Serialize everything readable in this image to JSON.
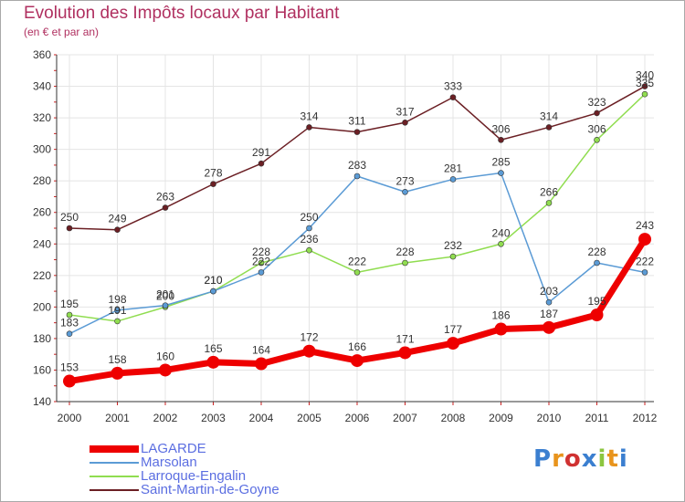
{
  "title": "Evolution des Impôts locaux par Habitant",
  "subtitle": "(en € et par an)",
  "logo": {
    "text": "Proxiti",
    "letter_colors": [
      "#3b7fd0",
      "#e8941c",
      "#d03232",
      "#3b7fd0",
      "#8cc63f",
      "#e8941c",
      "#3b7fd0"
    ]
  },
  "chart_data": {
    "type": "line",
    "title": "Evolution des Impôts locaux par Habitant",
    "subtitle": "(en € et par an)",
    "xlabel": "",
    "ylabel": "",
    "x": [
      "2000",
      "2001",
      "2002",
      "2003",
      "2004",
      "2005",
      "2006",
      "2007",
      "2008",
      "2009",
      "2010",
      "2011",
      "2012"
    ],
    "ylim": [
      140,
      360
    ],
    "yticks": [
      140,
      160,
      180,
      200,
      220,
      240,
      260,
      280,
      300,
      320,
      340,
      360
    ],
    "grid": true,
    "legend_position": "bottom-left",
    "series": [
      {
        "name": "LAGARDE",
        "color": "#ee0000",
        "values": [
          153,
          158,
          160,
          165,
          164,
          172,
          166,
          171,
          177,
          186,
          187,
          195,
          243
        ]
      },
      {
        "name": "Marsolan",
        "color": "#5b9bd5",
        "values": [
          183,
          198,
          201,
          210,
          222,
          250,
          283,
          273,
          281,
          285,
          203,
          228,
          222
        ]
      },
      {
        "name": "Larroque-Engalin",
        "color": "#90dd50",
        "values": [
          195,
          191,
          200,
          210,
          228,
          236,
          222,
          228,
          232,
          240,
          266,
          306,
          335
        ]
      },
      {
        "name": "Saint-Martin-de-Goyne",
        "color": "#6b1f24",
        "values": [
          250,
          249,
          263,
          278,
          291,
          314,
          311,
          317,
          333,
          306,
          314,
          323,
          340
        ]
      }
    ]
  }
}
